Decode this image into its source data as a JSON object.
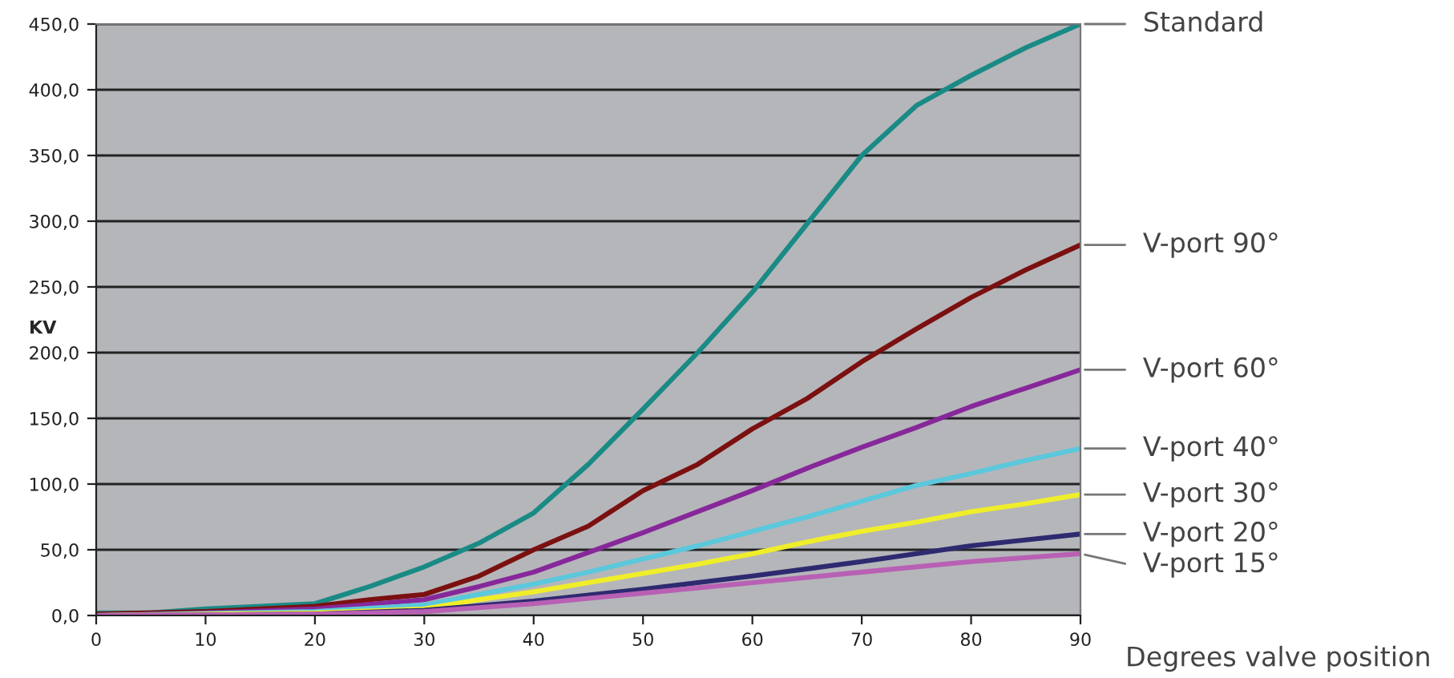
{
  "chart_data": {
    "type": "line",
    "xlabel": "Degrees valve position",
    "ylabel": "KV",
    "xlim": [
      0,
      90
    ],
    "xticks": [
      0,
      10,
      20,
      30,
      40,
      50,
      60,
      70,
      80,
      90
    ],
    "ylim": [
      0,
      450
    ],
    "yticks": [
      {
        "value": 0,
        "label": "0,0"
      },
      {
        "value": 50,
        "label": "50,0"
      },
      {
        "value": 100,
        "label": "100,0"
      },
      {
        "value": 150,
        "label": "150,0"
      },
      {
        "value": 200,
        "label": "200,0"
      },
      {
        "value": 250,
        "label": "250,0"
      },
      {
        "value": 300,
        "label": "300,0"
      },
      {
        "value": 350,
        "label": "350,0"
      },
      {
        "value": 400,
        "label": "400,0"
      },
      {
        "value": 450,
        "label": "450,0"
      }
    ],
    "grid": "y",
    "legend": false,
    "marker": "none",
    "line_style": "solid",
    "series": [
      {
        "name": "Standard",
        "color": "#1a8a85",
        "x": [
          0,
          5,
          10,
          15,
          20,
          25,
          30,
          35,
          40,
          45,
          50,
          55,
          60,
          65,
          70,
          75,
          80,
          85,
          90
        ],
        "values": [
          2,
          2,
          5,
          7,
          9,
          22,
          37,
          55,
          78,
          115,
          157,
          200,
          246,
          298,
          350,
          388,
          411,
          432,
          450
        ]
      },
      {
        "name": "V-port 90°",
        "color": "#7b1010",
        "x": [
          0,
          10,
          20,
          25,
          30,
          35,
          40,
          45,
          50,
          55,
          60,
          65,
          70,
          75,
          80,
          85,
          90
        ],
        "values": [
          1,
          3,
          7,
          12,
          16,
          30,
          50,
          68,
          95,
          115,
          142,
          165,
          193,
          218,
          242,
          263,
          282
        ]
      },
      {
        "name": "V-port 60°",
        "color": "#87289a",
        "x": [
          0,
          10,
          20,
          30,
          35,
          40,
          45,
          50,
          55,
          60,
          65,
          70,
          75,
          80,
          85,
          90
        ],
        "values": [
          0,
          2,
          5,
          12,
          22,
          33,
          48,
          63,
          79,
          95,
          112,
          128,
          143,
          159,
          173,
          187
        ]
      },
      {
        "name": "V-port 40°",
        "color": "#5bc8dc",
        "x": [
          0,
          20,
          30,
          35,
          40,
          45,
          50,
          55,
          60,
          65,
          70,
          75,
          80,
          85,
          90
        ],
        "values": [
          0,
          3,
          8,
          16,
          24,
          33,
          43,
          53,
          64,
          75,
          87,
          99,
          108,
          118,
          127
        ]
      },
      {
        "name": "V-port 30°",
        "color": "#f0ee2a",
        "x": [
          0,
          10,
          20,
          30,
          35,
          40,
          45,
          50,
          55,
          60,
          65,
          70,
          75,
          80,
          85,
          90
        ],
        "values": [
          0,
          1,
          2,
          5,
          12,
          18,
          25,
          32,
          39,
          47,
          56,
          64,
          71,
          79,
          85,
          92
        ]
      },
      {
        "name": "V-port 20°",
        "color": "#2e2a70",
        "x": [
          0,
          20,
          30,
          40,
          50,
          60,
          70,
          80,
          90
        ],
        "values": [
          0,
          1,
          4,
          11,
          20,
          30,
          41,
          53,
          62
        ]
      },
      {
        "name": "V-port 15°",
        "color": "#b860b4",
        "x": [
          0,
          20,
          30,
          40,
          50,
          60,
          70,
          80,
          90
        ],
        "values": [
          0,
          1,
          3,
          9,
          17,
          25,
          33,
          41,
          47
        ]
      }
    ]
  }
}
